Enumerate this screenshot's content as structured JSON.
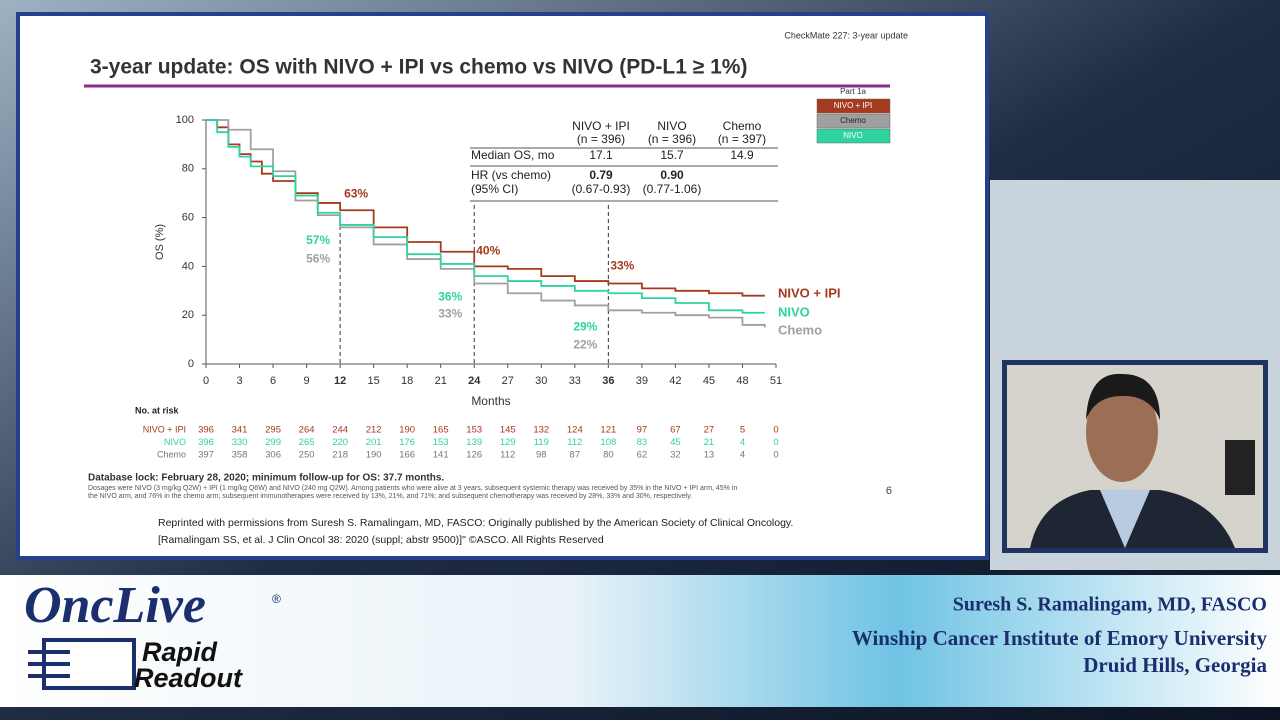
{
  "slide": {
    "header": "CheckMate 227: 3-year update",
    "page_number": "6",
    "footnote_bold": "Database lock: February 28, 2020; minimum follow-up for OS: 37.7 months.",
    "footnote_lines": [
      "Dosages were NIVO (3 mg/kg Q2W) + IPI (1 mg/kg Q6W) and NIVO (240 mg Q2W). Among patients who were alive at 3 years, subsequent systemic therapy was received by 35% in the NIVO + IPI arm, 45% in",
      "the NIVO arm, and 76% in the chemo arm; subsequent immunotherapies were received by 13%, 21%, and 71%; and subsequent chemotherapy was received by 28%, 33% and 30%, respectively."
    ],
    "reprint_lines": [
      "Reprinted with permissions from Suresh S. Ramalingam, MD, FASCO: Originally published by the American Society of Clinical Oncology.",
      "[Ramalingam SS, et al. J Clin Oncol 38: 2020 (suppl; abstr 9500)]\" ©ASCO. All Rights Reserved"
    ],
    "legend_title": "Part 1a"
  },
  "stats_table": {
    "headers": [
      {
        "line1": "NIVO + IPI",
        "line2": "(n = 396)"
      },
      {
        "line1": "NIVO",
        "line2": "(n = 396)"
      },
      {
        "line1": "Chemo",
        "line2": "(n = 397)"
      }
    ],
    "rows": [
      {
        "label": "Median OS, mo",
        "values": [
          "17.1",
          "15.7",
          "14.9"
        ]
      },
      {
        "label": "HR (vs chemo)",
        "values": [
          "0.79",
          "0.90"
        ]
      },
      {
        "label": "(95% CI)",
        "values": [
          "(0.67-0.93)",
          "(0.77-1.06)"
        ]
      }
    ]
  },
  "risk_table": {
    "title": "No. at risk",
    "rows": [
      {
        "name": "NIVO + IPI",
        "values": [
          396,
          341,
          295,
          264,
          244,
          212,
          190,
          165,
          153,
          145,
          132,
          124,
          121,
          97,
          67,
          27,
          5,
          0
        ]
      },
      {
        "name": "NIVO",
        "values": [
          396,
          330,
          299,
          265,
          220,
          201,
          176,
          153,
          139,
          129,
          119,
          112,
          108,
          83,
          45,
          21,
          4,
          0
        ]
      },
      {
        "name": "Chemo",
        "values": [
          397,
          358,
          306,
          250,
          218,
          190,
          166,
          141,
          126,
          112,
          98,
          87,
          80,
          62,
          32,
          13,
          4,
          0
        ]
      }
    ]
  },
  "lower_third": {
    "name": "Suresh S. Ramalingam, MD, FASCO",
    "institution": "Winship Cancer Institute of Emory University",
    "location": "Druid Hills, Georgia",
    "brand": "OncLive",
    "registered": "®",
    "program_line1": "Rapid",
    "program_line2": "Readout"
  },
  "chart_data": {
    "type": "line",
    "title": "3-year update: OS with NIVO + IPI vs chemo vs NIVO (PD-L1 ≥ 1%)",
    "x_label": "Months",
    "y_label": "OS (%)",
    "xlim": [
      0,
      51
    ],
    "ylim": [
      0,
      100
    ],
    "xticks": [
      0,
      3,
      6,
      9,
      12,
      15,
      18,
      21,
      24,
      27,
      30,
      33,
      36,
      39,
      42,
      45,
      48,
      51
    ],
    "yticks": [
      0,
      20,
      40,
      60,
      80,
      100
    ],
    "highlight_x": [
      12,
      24,
      36
    ],
    "series": [
      {
        "name": "NIVO + IPI",
        "color": "#a63a1e",
        "x": [
          0,
          1,
          2,
          3,
          4,
          5,
          6,
          8,
          10,
          12,
          15,
          18,
          21,
          24,
          27,
          30,
          33,
          36,
          39,
          42,
          45,
          48,
          50
        ],
        "values": [
          100,
          97,
          90,
          86,
          83,
          78,
          75,
          70,
          66,
          63,
          56,
          50,
          46,
          40,
          39,
          36,
          34,
          33,
          31,
          30,
          29,
          28,
          28
        ]
      },
      {
        "name": "Chemo",
        "color": "#a0a0a0",
        "x": [
          0,
          2,
          4,
          6,
          8,
          10,
          12,
          15,
          18,
          21,
          24,
          27,
          30,
          33,
          36,
          39,
          42,
          45,
          48,
          50
        ],
        "values": [
          100,
          96,
          88,
          79,
          67,
          61,
          56,
          49,
          43,
          39,
          33,
          29,
          26,
          24,
          22,
          21,
          20,
          19,
          16,
          15
        ]
      },
      {
        "name": "NIVO",
        "color": "#2ed3a0",
        "x": [
          0,
          1,
          2,
          3,
          4,
          6,
          8,
          10,
          12,
          15,
          18,
          21,
          24,
          27,
          30,
          33,
          36,
          39,
          42,
          45,
          48,
          50
        ],
        "values": [
          100,
          95,
          89,
          85,
          81,
          77,
          69,
          62,
          57,
          52,
          45,
          41,
          36,
          34,
          32,
          30,
          29,
          27,
          25,
          22,
          21,
          21
        ]
      }
    ],
    "annotations": [
      {
        "x": 12,
        "value": 63,
        "label": "63%",
        "color": "#a63a1e"
      },
      {
        "x": 12,
        "value": 57,
        "label": "57%",
        "color": "#2ed3a0"
      },
      {
        "x": 12,
        "value": 56,
        "label": "56%",
        "color": "#a0a0a0"
      },
      {
        "x": 24,
        "value": 40,
        "label": "40%",
        "color": "#a63a1e"
      },
      {
        "x": 24,
        "value": 36,
        "label": "36%",
        "color": "#2ed3a0"
      },
      {
        "x": 24,
        "value": 33,
        "label": "33%",
        "color": "#a0a0a0"
      },
      {
        "x": 36,
        "value": 33,
        "label": "33%",
        "color": "#a63a1e"
      },
      {
        "x": 36,
        "value": 29,
        "label": "29%",
        "color": "#2ed3a0"
      },
      {
        "x": 36,
        "value": 22,
        "label": "22%",
        "color": "#a0a0a0"
      }
    ]
  }
}
